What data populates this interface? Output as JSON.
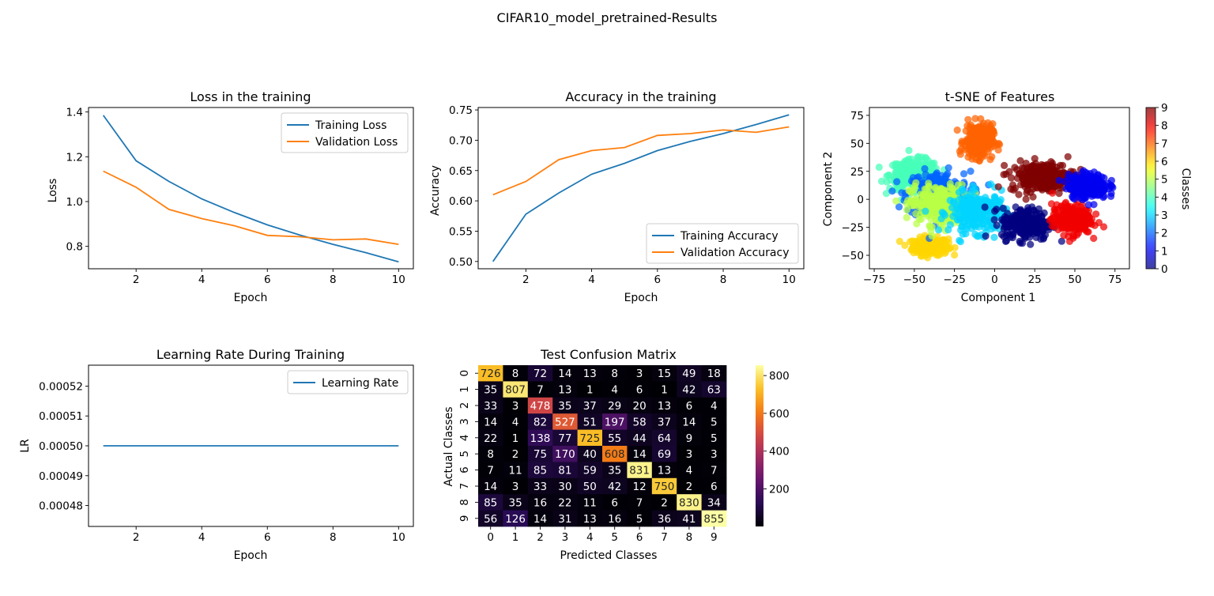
{
  "figure": {
    "title": "CIFAR10_model_pretrained-Results"
  },
  "colors": {
    "training": "#1f77b4",
    "validation": "#ff7f0e",
    "axis": "#000000"
  },
  "chart_data": [
    {
      "type": "line",
      "title": "Loss in the training",
      "xlabel": "Epoch",
      "ylabel": "Loss",
      "xlim": [
        0.55,
        10.45
      ],
      "ylim": [
        0.7,
        1.42
      ],
      "xticks": [
        2,
        4,
        6,
        8,
        10
      ],
      "yticks": [
        0.8,
        1.0,
        1.2,
        1.4
      ],
      "x": [
        1,
        2,
        3,
        4,
        5,
        6,
        7,
        8,
        9,
        10
      ],
      "legend": "top-right",
      "series": [
        {
          "name": "Training Loss",
          "color": "#1f77b4",
          "values": [
            1.385,
            1.182,
            1.09,
            1.012,
            0.951,
            0.896,
            0.85,
            0.809,
            0.772,
            0.731
          ]
        },
        {
          "name": "Validation Loss",
          "color": "#ff7f0e",
          "values": [
            1.136,
            1.064,
            0.965,
            0.924,
            0.892,
            0.849,
            0.843,
            0.829,
            0.833,
            0.809
          ]
        }
      ]
    },
    {
      "type": "line",
      "title": "Accuracy in the training",
      "xlabel": "Epoch",
      "ylabel": "Accuracy",
      "xlim": [
        0.55,
        10.45
      ],
      "ylim": [
        0.488,
        0.754
      ],
      "xticks": [
        2,
        4,
        6,
        8,
        10
      ],
      "yticks": [
        0.5,
        0.55,
        0.6,
        0.65,
        0.7,
        0.75
      ],
      "x": [
        1,
        2,
        3,
        4,
        5,
        6,
        7,
        8,
        9,
        10
      ],
      "legend": "bottom-right",
      "series": [
        {
          "name": "Training Accuracy",
          "color": "#1f77b4",
          "values": [
            0.5,
            0.578,
            0.613,
            0.644,
            0.662,
            0.683,
            0.698,
            0.711,
            0.726,
            0.742
          ]
        },
        {
          "name": "Validation Accuracy",
          "color": "#ff7f0e",
          "values": [
            0.61,
            0.632,
            0.668,
            0.683,
            0.688,
            0.708,
            0.711,
            0.717,
            0.713,
            0.722
          ]
        }
      ]
    },
    {
      "type": "scatter",
      "title": "t-SNE of Features",
      "xlabel": "Component 1",
      "ylabel": "Component 2",
      "xlim": [
        -78,
        84
      ],
      "ylim": [
        -62,
        82
      ],
      "xticks": [
        -75,
        -50,
        -25,
        0,
        25,
        50,
        75
      ],
      "yticks": [
        -50,
        -25,
        0,
        25,
        50,
        75
      ],
      "colorbar": {
        "label": "Classes",
        "ticks": [
          0,
          1,
          2,
          3,
          4,
          5,
          6,
          7,
          8,
          9
        ],
        "colormap": "jet"
      },
      "clusters": [
        {
          "class": 0,
          "center": [
            20,
            -22
          ],
          "spread": [
            14,
            13
          ]
        },
        {
          "class": 1,
          "center": [
            58,
            12
          ],
          "spread": [
            11,
            10
          ]
        },
        {
          "class": 2,
          "center": [
            -35,
            5
          ],
          "spread": [
            18,
            18
          ]
        },
        {
          "class": 3,
          "center": [
            -10,
            -12
          ],
          "spread": [
            16,
            16
          ]
        },
        {
          "class": 4,
          "center": [
            -50,
            22
          ],
          "spread": [
            14,
            12
          ]
        },
        {
          "class": 5,
          "center": [
            -35,
            -5
          ],
          "spread": [
            16,
            16
          ]
        },
        {
          "class": 6,
          "center": [
            -40,
            -42
          ],
          "spread": [
            10,
            7
          ]
        },
        {
          "class": 7,
          "center": [
            -10,
            52
          ],
          "spread": [
            8,
            14
          ]
        },
        {
          "class": 8,
          "center": [
            48,
            -18
          ],
          "spread": [
            11,
            12
          ]
        },
        {
          "class": 9,
          "center": [
            30,
            20
          ],
          "spread": [
            18,
            12
          ]
        }
      ]
    },
    {
      "type": "line",
      "title": "Learning Rate During Training",
      "xlabel": "Epoch",
      "ylabel": "LR",
      "xlim": [
        0.55,
        10.45
      ],
      "ylim": [
        0.000473,
        0.000527
      ],
      "xticks": [
        2,
        4,
        6,
        8,
        10
      ],
      "yticks": [
        0.00048,
        0.00049,
        0.0005,
        0.00051,
        0.00052
      ],
      "x": [
        1,
        2,
        3,
        4,
        5,
        6,
        7,
        8,
        9,
        10
      ],
      "legend": "top-right",
      "series": [
        {
          "name": "Learning Rate",
          "color": "#1f77b4",
          "values": [
            0.0005,
            0.0005,
            0.0005,
            0.0005,
            0.0005,
            0.0005,
            0.0005,
            0.0005,
            0.0005,
            0.0005
          ]
        }
      ]
    },
    {
      "type": "heatmap",
      "title": "Test Confusion Matrix",
      "xlabel": "Predicted Classes",
      "ylabel": "Actual Classes",
      "x_categories": [
        "0",
        "1",
        "2",
        "3",
        "4",
        "5",
        "6",
        "7",
        "8",
        "9"
      ],
      "y_categories": [
        "0",
        "1",
        "2",
        "3",
        "4",
        "5",
        "6",
        "7",
        "8",
        "9"
      ],
      "colormap": "inferno",
      "colorbar": {
        "ticks": [
          200,
          400,
          600,
          800
        ],
        "range": [
          1,
          855
        ]
      },
      "matrix": [
        [
          726,
          8,
          72,
          14,
          13,
          8,
          3,
          15,
          49,
          18
        ],
        [
          35,
          807,
          7,
          13,
          1,
          4,
          6,
          1,
          42,
          63
        ],
        [
          33,
          3,
          478,
          35,
          37,
          29,
          20,
          13,
          6,
          4
        ],
        [
          14,
          4,
          82,
          527,
          51,
          197,
          58,
          37,
          14,
          5
        ],
        [
          22,
          1,
          138,
          77,
          725,
          55,
          44,
          64,
          9,
          5
        ],
        [
          8,
          2,
          75,
          170,
          40,
          608,
          14,
          69,
          3,
          3
        ],
        [
          7,
          11,
          85,
          81,
          59,
          35,
          831,
          13,
          4,
          7
        ],
        [
          14,
          3,
          33,
          30,
          50,
          42,
          12,
          750,
          2,
          6
        ],
        [
          85,
          35,
          16,
          22,
          11,
          6,
          7,
          2,
          830,
          34
        ],
        [
          56,
          126,
          14,
          31,
          13,
          16,
          5,
          36,
          41,
          855
        ]
      ]
    }
  ]
}
